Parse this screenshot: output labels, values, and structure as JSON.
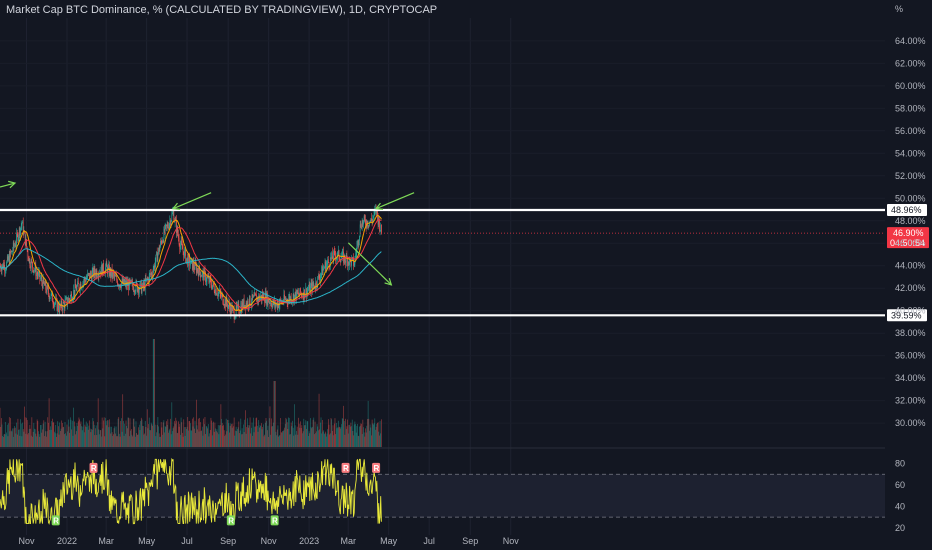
{
  "header": {
    "title": "Market Cap BTC Dominance, % (CALCULATED BY TRADINGVIEW), 1D, CRYPTOCAP",
    "unit_label": "%"
  },
  "colors": {
    "background": "#131722",
    "up": "#26a69a",
    "down": "#ef5350",
    "ma_fast": "#f7a600",
    "ma_slow": "#f23645",
    "ma_long": "#2bb3c7",
    "rsi": "#e8e83a",
    "annotation": "#7ed957",
    "level_line": "#ffffff",
    "price_tag": "#f23645"
  },
  "chart_data": [
    {
      "type": "candlestick",
      "symbol": "CRYPTOCAP:BTC.D",
      "interval": "1D",
      "x_ticks": [
        "Nov",
        "2022",
        "Mar",
        "May",
        "Jul",
        "Sep",
        "Nov",
        "2023",
        "Mar",
        "May",
        "Jul",
        "Sep",
        "Nov"
      ],
      "y_ticks": [
        64,
        62,
        60,
        58,
        56,
        54,
        52,
        50,
        48,
        46,
        44,
        42,
        40,
        38,
        36,
        34,
        32,
        30
      ],
      "y_tick_labels": [
        "64.00%",
        "62.00%",
        "60.00%",
        "58.00%",
        "56.00%",
        "54.00%",
        "52.00%",
        "50.00%",
        "48.00%",
        "46.00%",
        "44.00%",
        "42.00%",
        "40.00%",
        "38.00%",
        "36.00%",
        "34.00%",
        "32.00%",
        "30.00%"
      ],
      "ylim": [
        28.5,
        65.5
      ],
      "series_approx": {
        "description": "daily close path, weekly key points",
        "points": [
          [
            "2021-10-01",
            44.0
          ],
          [
            "2021-10-15",
            46.0
          ],
          [
            "2021-10-25",
            47.8
          ],
          [
            "2021-11-05",
            44.5
          ],
          [
            "2021-11-20",
            43.0
          ],
          [
            "2021-12-05",
            41.5
          ],
          [
            "2021-12-20",
            40.2
          ],
          [
            "2022-01-01",
            40.8
          ],
          [
            "2022-01-15",
            42.0
          ],
          [
            "2022-02-01",
            43.0
          ],
          [
            "2022-02-15",
            43.5
          ],
          [
            "2022-03-01",
            43.8
          ],
          [
            "2022-03-20",
            42.5
          ],
          [
            "2022-04-10",
            42.2
          ],
          [
            "2022-04-25",
            42.0
          ],
          [
            "2022-05-10",
            43.5
          ],
          [
            "2022-05-25",
            46.5
          ],
          [
            "2022-06-10",
            48.7
          ],
          [
            "2022-06-20",
            46.0
          ],
          [
            "2022-07-01",
            44.5
          ],
          [
            "2022-07-20",
            43.5
          ],
          [
            "2022-08-05",
            42.5
          ],
          [
            "2022-08-25",
            41.0
          ],
          [
            "2022-09-10",
            39.8
          ],
          [
            "2022-09-25",
            40.6
          ],
          [
            "2022-10-10",
            41.0
          ],
          [
            "2022-10-25",
            41.3
          ],
          [
            "2022-11-10",
            40.5
          ],
          [
            "2022-11-25",
            40.9
          ],
          [
            "2022-12-10",
            41.3
          ],
          [
            "2022-12-25",
            41.6
          ],
          [
            "2023-01-10",
            42.3
          ],
          [
            "2023-01-25",
            44.0
          ],
          [
            "2023-02-10",
            45.0
          ],
          [
            "2023-02-25",
            44.6
          ],
          [
            "2023-03-10",
            44.2
          ],
          [
            "2023-03-20",
            47.8
          ],
          [
            "2023-04-05",
            48.0
          ],
          [
            "2023-04-12",
            48.9
          ],
          [
            "2023-04-20",
            46.9
          ]
        ]
      },
      "moving_averages": [
        {
          "key": "ma_fast"
        },
        {
          "key": "ma_slow"
        },
        {
          "key": "ma_long"
        }
      ],
      "levels": [
        {
          "value": 48.96,
          "label": "48.96%"
        },
        {
          "value": 39.59,
          "label": "39.59%"
        }
      ],
      "last_price": {
        "value": 46.9,
        "label": "46.90%",
        "countdown": "04:50:54"
      },
      "annotations": [
        {
          "kind": "arrow",
          "direction": "down-left",
          "at": [
            "2022-06-10",
            48.9
          ]
        },
        {
          "kind": "arrow",
          "direction": "down-left",
          "at": [
            "2023-04-12",
            48.9
          ]
        },
        {
          "kind": "arrow",
          "direction": "down-right",
          "at": [
            "2023-05-05",
            42.3
          ]
        },
        {
          "kind": "arrow",
          "direction": "right",
          "at": [
            "2021-10-01",
            51.0
          ]
        }
      ]
    },
    {
      "type": "bar",
      "pane": "volume",
      "description": "daily volume bars colored by candle direction"
    },
    {
      "type": "line",
      "pane": "rsi",
      "y_ticks": [
        80,
        60,
        40,
        20
      ],
      "y_tick_labels": [
        "80",
        "60",
        "40",
        "20"
      ],
      "ylim": [
        18,
        88
      ],
      "upper_band": 70,
      "lower_band": 30,
      "divergences": [
        {
          "kind": "bearish",
          "label": "R",
          "at": "2022-02-10"
        },
        {
          "kind": "bullish",
          "label": "R",
          "at": "2021-12-15"
        },
        {
          "kind": "bullish",
          "label": "R",
          "at": "2022-09-05"
        },
        {
          "kind": "bullish",
          "label": "R",
          "at": "2022-11-10"
        },
        {
          "kind": "bearish",
          "label": "R",
          "at": "2023-02-25"
        },
        {
          "kind": "bearish",
          "label": "R",
          "at": "2023-04-12"
        }
      ]
    }
  ]
}
